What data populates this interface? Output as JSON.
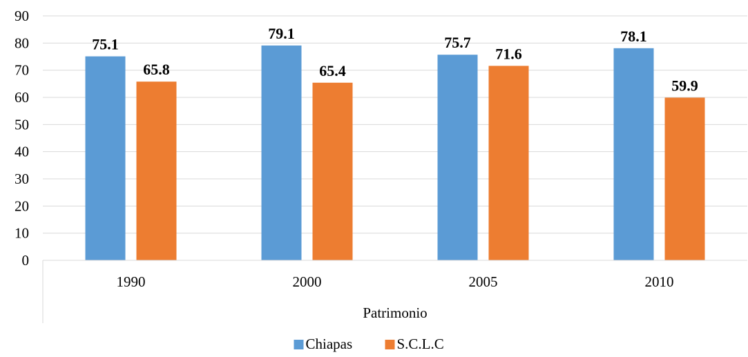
{
  "chart_data": {
    "type": "bar",
    "categories": [
      "1990",
      "2000",
      "2005",
      "2010"
    ],
    "group_label": "Patrimonio",
    "series": [
      {
        "name": "Chiapas",
        "values": [
          75.1,
          79.1,
          75.7,
          78.1
        ],
        "color": "#5b9bd5"
      },
      {
        "name": "S.C.L.C",
        "values": [
          65.8,
          65.4,
          71.6,
          59.9
        ],
        "color": "#ed7d31"
      }
    ],
    "ylim": [
      0,
      90
    ],
    "yticks": [
      0,
      10,
      20,
      30,
      40,
      50,
      60,
      70,
      80,
      90
    ],
    "grid": true,
    "legend_position": "bottom",
    "gridline_color": "#d9d9d9"
  }
}
